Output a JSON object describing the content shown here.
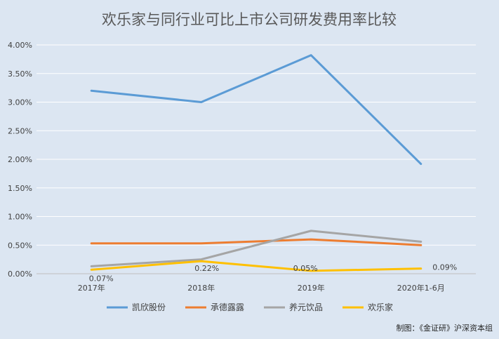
{
  "chart_data": {
    "type": "line",
    "title": "欢乐家与同行业可比上市公司研发费用率比较",
    "xlabel": "",
    "ylabel": "",
    "categories": [
      "2017年",
      "2018年",
      "2019年",
      "2020年1-6月"
    ],
    "ylim": [
      0,
      4
    ],
    "yticks": [
      "0.00%",
      "0.50%",
      "1.00%",
      "1.50%",
      "2.00%",
      "2.50%",
      "3.00%",
      "3.50%",
      "4.00%"
    ],
    "grid": true,
    "legend_position": "bottom",
    "series": [
      {
        "name": "凯欣股份",
        "color": "#5b9bd5",
        "values": [
          3.2,
          3.0,
          3.82,
          1.92
        ]
      },
      {
        "name": "承德露露",
        "color": "#ed7d31",
        "values": [
          0.53,
          0.53,
          0.6,
          0.5
        ]
      },
      {
        "name": "养元饮品",
        "color": "#a5a5a5",
        "values": [
          0.13,
          0.25,
          0.75,
          0.56
        ]
      },
      {
        "name": "欢乐家",
        "color": "#ffc000",
        "values": [
          0.07,
          0.22,
          0.05,
          0.09
        ],
        "data_labels": [
          "0.07%",
          "0.22%",
          "0.05%",
          "0.09%"
        ]
      }
    ]
  },
  "credit": "制图：《金证研》沪深资本组"
}
